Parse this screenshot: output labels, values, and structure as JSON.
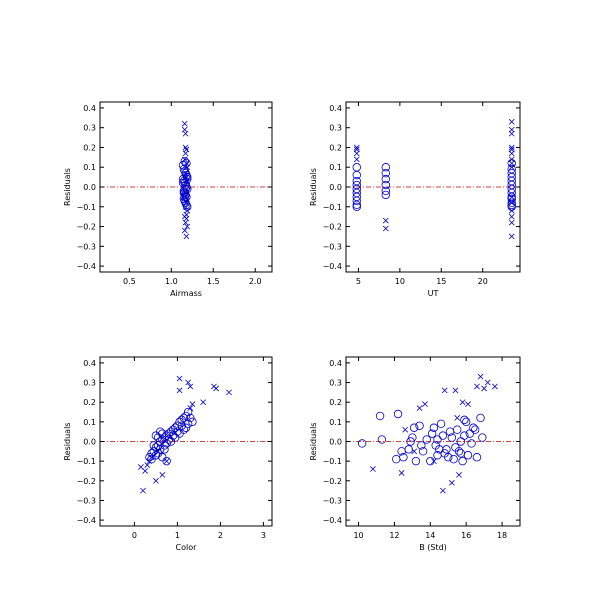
{
  "chart_data": [
    {
      "type": "scatter",
      "xlabel": "Airmass",
      "ylabel": "Residuals",
      "xlim": [
        0.15,
        2.2
      ],
      "ylim": [
        -0.43,
        0.43
      ],
      "xticks": [
        0.5,
        1.0,
        1.5,
        2.0
      ],
      "xtick_labels": [
        "0.5",
        "1.0",
        "1.5",
        "2.0"
      ],
      "yticks": [
        -0.4,
        -0.3,
        -0.2,
        -0.1,
        0.0,
        0.1,
        0.2,
        0.3,
        0.4
      ],
      "ytick_labels": [
        "−0.4",
        "−0.3",
        "−0.2",
        "−0.1",
        "0.0",
        "0.1",
        "0.2",
        "0.3",
        "0.4"
      ],
      "reference_line_y": 0.0,
      "marker_color": "#0000cc",
      "line_color": "#cc0000",
      "series": [
        {
          "marker": "cross",
          "x": [
            1.16,
            1.16,
            1.17,
            1.17,
            1.18,
            1.17,
            1.16,
            1.18,
            1.19,
            1.17,
            1.18,
            1.19,
            1.17,
            1.16,
            1.18,
            1.17,
            1.19,
            1.18,
            1.16,
            1.18,
            1.17,
            1.19,
            1.16,
            1.18
          ],
          "y": [
            0.32,
            0.29,
            0.27,
            0.2,
            0.19,
            0.17,
            0.14,
            0.12,
            0.1,
            0.07,
            0.05,
            0.03,
            -0.03,
            -0.05,
            -0.08,
            -0.1,
            -0.12,
            -0.14,
            -0.15,
            -0.16,
            -0.18,
            -0.2,
            -0.22,
            -0.25
          ]
        },
        {
          "marker": "circle",
          "x": [
            1.14,
            1.15,
            1.16,
            1.17,
            1.18,
            1.19,
            1.14,
            1.15,
            1.16,
            1.17,
            1.18,
            1.19,
            1.15,
            1.16,
            1.17,
            1.18,
            1.15,
            1.16,
            1.17,
            1.18,
            1.19,
            1.14,
            1.16,
            1.18,
            1.15,
            1.17,
            1.19,
            1.16
          ],
          "y": [
            0.11,
            0.09,
            0.08,
            0.07,
            0.06,
            0.05,
            0.04,
            0.03,
            0.02,
            0.01,
            0.0,
            -0.01,
            -0.02,
            -0.03,
            -0.04,
            -0.05,
            -0.06,
            -0.07,
            -0.08,
            -0.09,
            -0.1,
            0.02,
            0.13,
            0.12,
            -0.03,
            -0.01,
            0.04,
            -0.05
          ]
        }
      ]
    },
    {
      "type": "scatter",
      "xlabel": "UT",
      "ylabel": "Residuals",
      "xlim": [
        3.5,
        24.5
      ],
      "ylim": [
        -0.43,
        0.43
      ],
      "xticks": [
        5,
        10,
        15,
        20
      ],
      "xtick_labels": [
        "5",
        "10",
        "15",
        "20"
      ],
      "yticks": [
        -0.4,
        -0.3,
        -0.2,
        -0.1,
        0.0,
        0.1,
        0.2,
        0.3,
        0.4
      ],
      "ytick_labels": [
        "−0.4",
        "−0.3",
        "−0.2",
        "−0.1",
        "0.0",
        "0.1",
        "0.2",
        "0.3",
        "0.4"
      ],
      "reference_line_y": 0.0,
      "marker_color": "#0000cc",
      "line_color": "#cc0000",
      "series": [
        {
          "marker": "cross",
          "x": [
            4.8,
            4.8,
            4.8,
            4.8,
            8.3,
            8.3,
            23.5,
            23.5,
            23.5,
            23.5,
            23.5,
            23.5,
            23.5,
            23.5,
            23.5,
            23.5,
            23.5,
            23.5,
            23.5,
            23.5,
            23.5
          ],
          "y": [
            0.2,
            0.19,
            0.17,
            0.14,
            -0.17,
            -0.21,
            0.33,
            0.29,
            0.27,
            0.2,
            0.19,
            0.17,
            0.14,
            0.12,
            0.1,
            -0.05,
            -0.08,
            -0.12,
            -0.15,
            -0.18,
            -0.25
          ]
        },
        {
          "marker": "circle",
          "x": [
            4.8,
            4.8,
            4.8,
            4.8,
            4.8,
            4.8,
            4.8,
            4.8,
            4.8,
            4.8,
            8.3,
            8.3,
            8.3,
            8.3,
            8.3,
            8.3,
            23.5,
            23.5,
            23.5,
            23.5,
            23.5,
            23.5,
            23.5,
            23.5,
            23.5,
            23.5,
            23.5,
            23.5,
            23.5
          ],
          "y": [
            0.1,
            0.06,
            0.03,
            0.01,
            -0.01,
            -0.03,
            -0.05,
            -0.07,
            -0.09,
            -0.1,
            0.1,
            0.07,
            0.04,
            0.01,
            -0.02,
            -0.04,
            0.12,
            0.09,
            0.07,
            0.05,
            0.03,
            0.01,
            -0.01,
            -0.03,
            -0.05,
            -0.06,
            -0.08,
            -0.09,
            -0.1
          ]
        }
      ]
    },
    {
      "type": "scatter",
      "xlabel": "Color",
      "ylabel": "Residuals",
      "xlim": [
        -0.8,
        3.2
      ],
      "ylim": [
        -0.43,
        0.43
      ],
      "xticks": [
        0,
        1,
        2,
        3
      ],
      "xtick_labels": [
        "0",
        "1",
        "2",
        "3"
      ],
      "yticks": [
        -0.4,
        -0.3,
        -0.2,
        -0.1,
        0.0,
        0.1,
        0.2,
        0.3,
        0.4
      ],
      "ytick_labels": [
        "−0.4",
        "−0.3",
        "−0.2",
        "−0.1",
        "0.0",
        "0.1",
        "0.2",
        "0.3",
        "0.4"
      ],
      "reference_line_y": 0.0,
      "marker_color": "#0000cc",
      "line_color": "#cc0000",
      "series": [
        {
          "marker": "cross",
          "x": [
            1.05,
            1.05,
            1.25,
            1.85,
            1.9,
            2.2,
            1.3,
            1.35,
            1.3,
            1.6,
            0.2,
            0.25,
            0.3,
            0.35,
            0.5,
            0.65,
            0.75,
            0.15,
            0.4,
            0.55
          ],
          "y": [
            0.32,
            0.26,
            0.3,
            0.28,
            0.27,
            0.25,
            0.28,
            0.19,
            0.17,
            0.2,
            -0.25,
            -0.15,
            -0.12,
            -0.1,
            -0.2,
            -0.17,
            -0.1,
            -0.13,
            -0.08,
            -0.05
          ]
        },
        {
          "marker": "circle",
          "x": [
            0.35,
            0.4,
            0.45,
            0.5,
            0.55,
            0.6,
            0.65,
            0.7,
            0.75,
            0.8,
            0.85,
            0.9,
            0.95,
            1.0,
            1.05,
            1.1,
            1.15,
            1.2,
            1.25,
            1.3,
            1.35,
            0.4,
            0.5,
            0.6,
            0.7,
            0.8,
            0.9,
            1.0,
            1.1,
            1.2,
            0.45,
            0.55,
            0.65,
            0.75,
            0.85,
            0.95,
            1.05,
            1.15,
            1.25,
            0.55,
            0.65,
            0.75,
            0.5,
            0.6,
            0.7
          ],
          "y": [
            -0.08,
            -0.06,
            -0.05,
            -0.03,
            -0.02,
            0.0,
            0.01,
            0.02,
            0.03,
            0.04,
            0.05,
            0.06,
            0.07,
            0.08,
            0.1,
            0.11,
            0.12,
            0.13,
            0.15,
            0.12,
            0.1,
            -0.09,
            -0.07,
            -0.04,
            -0.02,
            0.01,
            0.03,
            0.05,
            0.08,
            0.07,
            -0.02,
            0.02,
            0.04,
            -0.01,
            0.0,
            0.02,
            0.04,
            0.06,
            0.09,
            -0.06,
            -0.08,
            -0.1,
            0.03,
            0.05,
            -0.04
          ]
        }
      ]
    },
    {
      "type": "scatter",
      "xlabel": "B (Std)",
      "ylabel": "Residuals",
      "xlim": [
        9.3,
        19.0
      ],
      "ylim": [
        -0.43,
        0.43
      ],
      "xticks": [
        10,
        12,
        14,
        16,
        18
      ],
      "xtick_labels": [
        "10",
        "12",
        "14",
        "16",
        "18"
      ],
      "yticks": [
        -0.4,
        -0.3,
        -0.2,
        -0.1,
        0.0,
        0.1,
        0.2,
        0.3,
        0.4
      ],
      "ytick_labels": [
        "−0.4",
        "−0.3",
        "−0.2",
        "−0.1",
        "0.0",
        "0.1",
        "0.2",
        "0.3",
        "0.4"
      ],
      "reference_line_y": 0.0,
      "marker_color": "#0000cc",
      "line_color": "#cc0000",
      "series": [
        {
          "marker": "cross",
          "x": [
            10.8,
            12.4,
            13.1,
            13.4,
            13.7,
            14.7,
            14.8,
            15.2,
            15.4,
            15.6,
            16.6,
            16.8,
            17.0,
            17.2,
            17.6,
            15.5,
            14.2,
            15.8,
            12.6,
            16.1
          ],
          "y": [
            -0.14,
            -0.16,
            -0.05,
            0.17,
            0.19,
            -0.25,
            0.26,
            -0.21,
            0.26,
            -0.17,
            0.28,
            0.33,
            0.27,
            0.3,
            0.28,
            0.12,
            -0.1,
            0.2,
            0.06,
            0.19
          ]
        },
        {
          "marker": "circle",
          "x": [
            10.2,
            11.2,
            11.3,
            12.2,
            12.4,
            12.5,
            12.8,
            13.0,
            13.1,
            13.2,
            13.4,
            13.6,
            13.8,
            14.0,
            14.1,
            14.2,
            14.3,
            14.4,
            14.5,
            14.6,
            14.7,
            14.8,
            15.0,
            15.1,
            15.2,
            15.3,
            15.4,
            15.5,
            15.6,
            15.7,
            15.8,
            15.9,
            16.0,
            16.1,
            16.2,
            16.3,
            16.5,
            16.6,
            16.8,
            16.9,
            12.1,
            13.5,
            14.9,
            15.7,
            16.4,
            12.9,
            14.4,
            15.9
          ],
          "y": [
            -0.01,
            0.13,
            0.01,
            0.14,
            -0.05,
            -0.08,
            -0.04,
            0.02,
            0.07,
            -0.1,
            0.08,
            -0.05,
            0.01,
            -0.1,
            0.04,
            0.07,
            -0.02,
            0.01,
            -0.04,
            0.09,
            0.03,
            -0.06,
            -0.08,
            0.05,
            0.02,
            -0.09,
            -0.03,
            0.06,
            -0.05,
            0.0,
            -0.1,
            0.11,
            0.1,
            -0.07,
            0.04,
            -0.01,
            0.06,
            -0.08,
            0.12,
            0.02,
            -0.09,
            -0.02,
            -0.04,
            -0.06,
            0.07,
            0.0,
            -0.07,
            0.03
          ]
        }
      ]
    }
  ]
}
